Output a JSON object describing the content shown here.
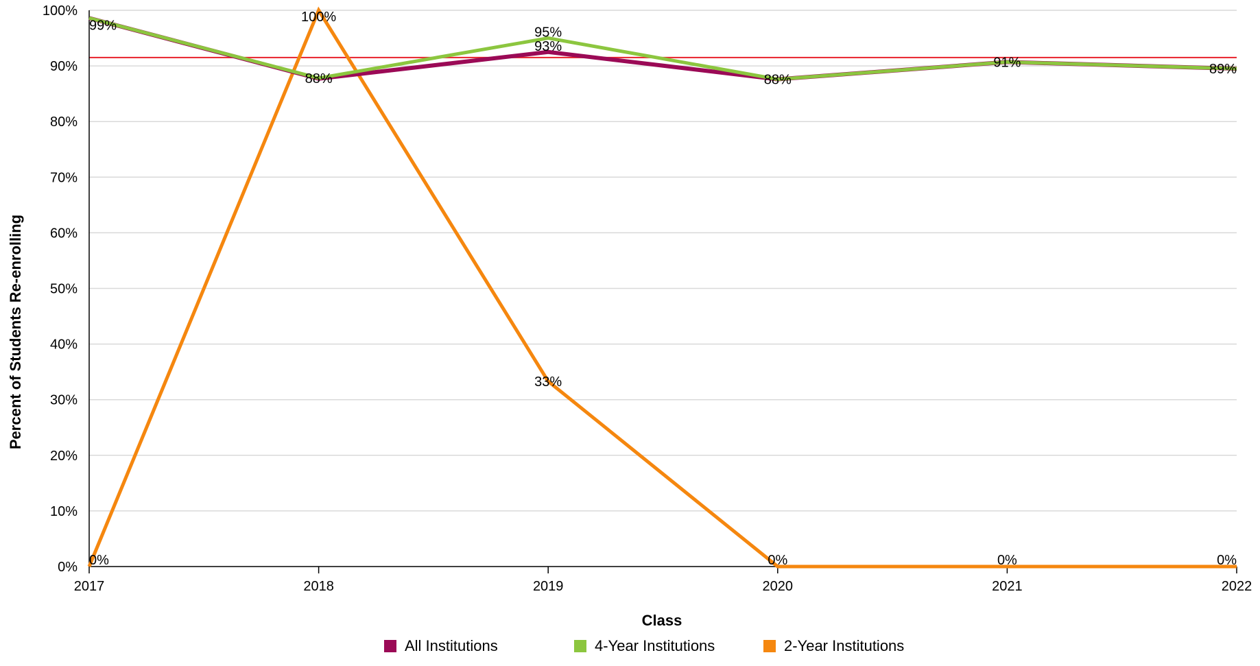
{
  "chart_data": {
    "type": "line",
    "xlabel": "Class",
    "ylabel": "Percent of Students Re-enrolling",
    "x": [
      "2017",
      "2018",
      "2019",
      "2020",
      "2021",
      "2022"
    ],
    "ylim": [
      0,
      100
    ],
    "y_ticks": [
      "0%",
      "10%",
      "20%",
      "30%",
      "40%",
      "50%",
      "60%",
      "70%",
      "80%",
      "90%",
      "100%"
    ],
    "grid": true,
    "legend_position": "bottom",
    "reference_line": {
      "value": 91.5,
      "color": "#e8202a"
    },
    "series": [
      {
        "name": "All Institutions",
        "color": "#9b0a56",
        "values": [
          98.6,
          87.7,
          92.5,
          87.6,
          90.7,
          89.5
        ],
        "labels": [
          "",
          "",
          "93%",
          "",
          "",
          ""
        ]
      },
      {
        "name": "4-Year Institutions",
        "color": "#8cc63f",
        "values": [
          98.6,
          87.8,
          95.0,
          87.6,
          90.7,
          89.5
        ],
        "labels": [
          "99%",
          "88%",
          "95%",
          "88%",
          "91%",
          "89%"
        ]
      },
      {
        "name": "2-Year Institutions",
        "color": "#f5870f",
        "values": [
          0,
          100,
          33.3,
          0,
          0,
          0
        ],
        "labels": [
          "0%",
          "100%",
          "33%",
          "0%",
          "0%",
          "0%"
        ]
      }
    ]
  }
}
